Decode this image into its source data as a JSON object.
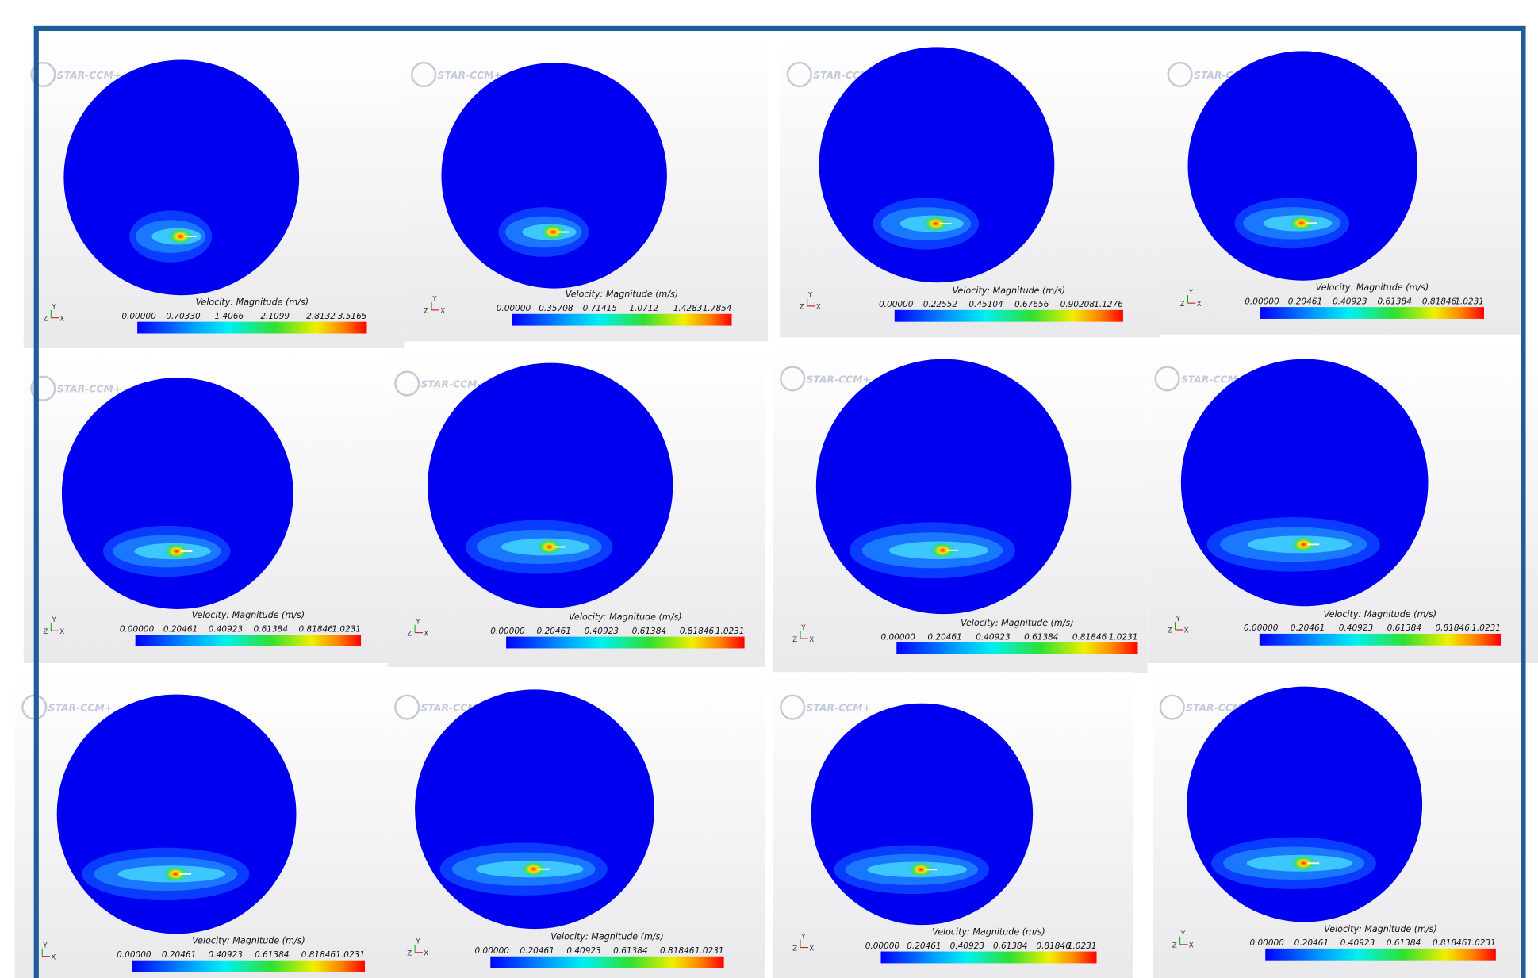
{
  "logo_text": "STAR-CCM+",
  "colorbar_title": "Velocity: Magnitude (m/s)",
  "triad": {
    "y": "Y",
    "z": "Z",
    "x": "X"
  },
  "panels": [
    {
      "ticks": [
        "0.00000",
        "0.70330",
        "1.4066",
        "2.1099",
        "2.8132",
        "3.5165"
      ]
    },
    {
      "ticks": [
        "0.00000",
        "0.35708",
        "0.71415",
        "1.0712",
        "1.4283",
        "1.7854"
      ]
    },
    {
      "ticks": [
        "0.00000",
        "0.22552",
        "0.45104",
        "0.67656",
        "0.90208",
        "1.1276"
      ]
    },
    {
      "ticks": [
        "0.00000",
        "0.20461",
        "0.40923",
        "0.61384",
        "0.81846",
        "1.0231"
      ]
    },
    {
      "ticks": [
        "0.00000",
        "0.20461",
        "0.40923",
        "0.61384",
        "0.81846",
        "1.0231"
      ]
    },
    {
      "ticks": [
        "0.00000",
        "0.20461",
        "0.40923",
        "0.61384",
        "0.81846",
        "1.0231"
      ]
    },
    {
      "ticks": [
        "0.00000",
        "0.20461",
        "0.40923",
        "0.61384",
        "0.81846",
        "1.0231"
      ]
    },
    {
      "ticks": [
        "0.00000",
        "0.20461",
        "0.40923",
        "0.61384",
        "0.81846",
        "1.0231"
      ]
    },
    {
      "ticks": [
        "0.00000",
        "0.20461",
        "0.40923",
        "0.61384",
        "0.81846",
        "1.0231"
      ]
    },
    {
      "ticks": [
        "0.00000",
        "0.20461",
        "0.40923",
        "0.61384",
        "0.81846",
        "1.0231"
      ]
    },
    {
      "ticks": [
        "0.00000",
        "0.20461",
        "0.40923",
        "0.61384",
        "0.81846",
        "1.0231"
      ]
    },
    {
      "ticks": [
        "0.00000",
        "0.20461",
        "0.40923",
        "0.61384",
        "0.81846",
        "1.0231"
      ]
    }
  ]
}
